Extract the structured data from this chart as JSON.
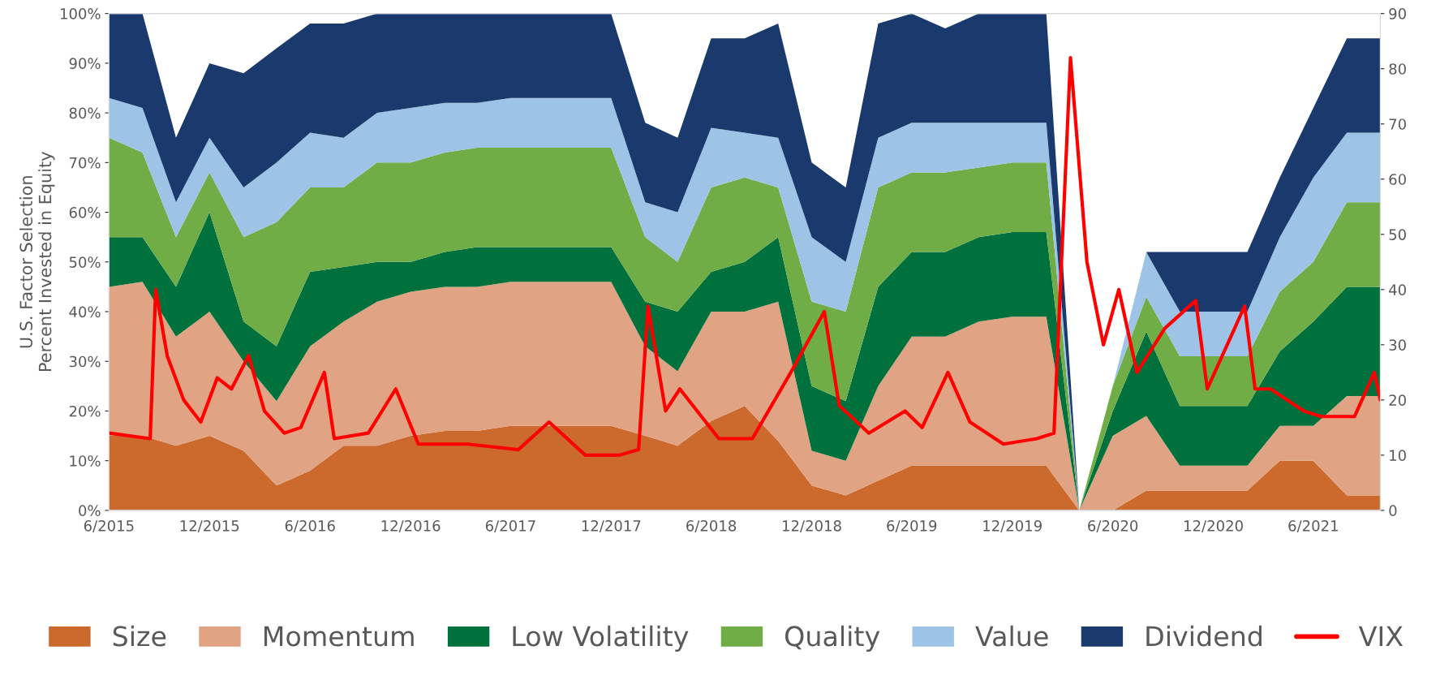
{
  "chart_data": {
    "type": "area",
    "stacked": true,
    "ylabel": "U.S. Factor Selection\nPercent Invested in Equity",
    "x": [
      "2015-06",
      "2015-08",
      "2015-10",
      "2015-12",
      "2016-02",
      "2016-04",
      "2016-06",
      "2016-08",
      "2016-10",
      "2016-12",
      "2017-02",
      "2017-04",
      "2017-06",
      "2017-08",
      "2017-10",
      "2017-12",
      "2018-02",
      "2018-04",
      "2018-06",
      "2018-08",
      "2018-10",
      "2018-12",
      "2019-02",
      "2019-04",
      "2019-06",
      "2019-08",
      "2019-10",
      "2019-12",
      "2020-02",
      "2020-04",
      "2020-06",
      "2020-08",
      "2020-10",
      "2020-12",
      "2021-02",
      "2021-04",
      "2021-06",
      "2021-08",
      "2021-10"
    ],
    "series": [
      {
        "name": "Size",
        "color": "#cc6a2d",
        "values": [
          15,
          15,
          13,
          15,
          12,
          5,
          8,
          13,
          13,
          15,
          16,
          16,
          17,
          17,
          17,
          17,
          15,
          13,
          18,
          21,
          14,
          5,
          3,
          6,
          9,
          9,
          9,
          9,
          9,
          0,
          0,
          4,
          4,
          4,
          4,
          10,
          10,
          3,
          3
        ]
      },
      {
        "name": "Momentum",
        "color": "#e0a484",
        "values": [
          30,
          31,
          22,
          25,
          18,
          17,
          25,
          25,
          29,
          29,
          29,
          29,
          29,
          29,
          29,
          29,
          18,
          15,
          22,
          19,
          28,
          7,
          7,
          19,
          26,
          26,
          29,
          30,
          30,
          0,
          15,
          15,
          5,
          5,
          5,
          7,
          7,
          20,
          20
        ]
      },
      {
        "name": "Low Volatility",
        "color": "#00703c",
        "values": [
          10,
          9,
          10,
          20,
          8,
          11,
          15,
          11,
          8,
          6,
          7,
          8,
          7,
          7,
          7,
          7,
          9,
          12,
          8,
          10,
          13,
          13,
          12,
          20,
          17,
          17,
          17,
          17,
          17,
          0,
          5,
          17,
          12,
          12,
          12,
          15,
          21,
          22,
          22
        ]
      },
      {
        "name": "Quality",
        "color": "#70ad47",
        "values": [
          20,
          17,
          10,
          8,
          17,
          25,
          17,
          16,
          20,
          20,
          20,
          20,
          20,
          20,
          20,
          20,
          13,
          10,
          17,
          17,
          10,
          17,
          18,
          20,
          16,
          16,
          14,
          14,
          14,
          0,
          5,
          7,
          10,
          10,
          10,
          12,
          12,
          17,
          17
        ]
      },
      {
        "name": "Value",
        "color": "#9dc3e6",
        "values": [
          8,
          9,
          7,
          7,
          10,
          12,
          11,
          10,
          10,
          11,
          10,
          9,
          10,
          10,
          10,
          10,
          7,
          10,
          12,
          9,
          10,
          13,
          10,
          10,
          10,
          10,
          9,
          8,
          8,
          0,
          0,
          9,
          9,
          9,
          9,
          11,
          17,
          14,
          14
        ]
      },
      {
        "name": "Dividend",
        "color": "#1a3a6e",
        "values": [
          17,
          19,
          13,
          15,
          23,
          23,
          22,
          23,
          20,
          19,
          18,
          18,
          17,
          17,
          17,
          17,
          16,
          15,
          18,
          19,
          23,
          15,
          15,
          23,
          22,
          19,
          22,
          22,
          22,
          0,
          0,
          0,
          12,
          12,
          12,
          12,
          14,
          19,
          19
        ]
      },
      {
        "name": "VIX",
        "type": "line",
        "axis": "y2",
        "color": "#ff0000",
        "x": [
          "2015-06-01",
          "2015-08-15",
          "2015-08-25",
          "2015-09-15",
          "2015-10-15",
          "2015-11-15",
          "2015-12-15",
          "2016-01-10",
          "2016-02-10",
          "2016-03-10",
          "2016-04-15",
          "2016-05-15",
          "2016-06-27",
          "2016-07-15",
          "2016-09-15",
          "2016-11-04",
          "2016-12-15",
          "2017-03-15",
          "2017-06-15",
          "2017-08-10",
          "2017-10-15",
          "2017-12-15",
          "2018-01-20",
          "2018-02-06",
          "2018-03-10",
          "2018-04-05",
          "2018-06-15",
          "2018-08-15",
          "2018-10-24",
          "2018-12-24",
          "2019-01-20",
          "2019-03-15",
          "2019-05-20",
          "2019-06-20",
          "2019-08-06",
          "2019-09-15",
          "2019-11-15",
          "2020-01-15",
          "2020-02-15",
          "2020-03-16",
          "2020-04-15",
          "2020-05-15",
          "2020-06-12",
          "2020-07-15",
          "2020-09-04",
          "2020-10-30",
          "2020-11-20",
          "2021-01-27",
          "2021-02-15",
          "2021-03-15",
          "2021-05-15",
          "2021-06-15",
          "2021-08-15",
          "2021-09-20",
          "2021-10-01"
        ],
        "values": [
          14,
          13,
          40,
          28,
          20,
          16,
          24,
          22,
          28,
          18,
          14,
          15,
          25,
          13,
          14,
          22,
          12,
          12,
          11,
          16,
          10,
          10,
          11,
          37,
          18,
          22,
          13,
          13,
          25,
          36,
          19,
          14,
          18,
          15,
          25,
          16,
          12,
          13,
          14,
          82,
          45,
          30,
          40,
          25,
          33,
          38,
          22,
          37,
          22,
          22,
          18,
          17,
          17,
          25,
          20
        ]
      }
    ],
    "xlim": [
      "2015-06",
      "2021-10"
    ],
    "xticks": [
      {
        "value": "2015-06",
        "label": "6/2015"
      },
      {
        "value": "2015-12",
        "label": "12/2015"
      },
      {
        "value": "2016-06",
        "label": "6/2016"
      },
      {
        "value": "2016-12",
        "label": "12/2016"
      },
      {
        "value": "2017-06",
        "label": "6/2017"
      },
      {
        "value": "2017-12",
        "label": "12/2017"
      },
      {
        "value": "2018-06",
        "label": "6/2018"
      },
      {
        "value": "2018-12",
        "label": "12/2018"
      },
      {
        "value": "2019-06",
        "label": "6/2019"
      },
      {
        "value": "2019-12",
        "label": "12/2019"
      },
      {
        "value": "2020-06",
        "label": "6/2020"
      },
      {
        "value": "2020-12",
        "label": "12/2020"
      },
      {
        "value": "2021-06",
        "label": "6/2021"
      }
    ],
    "ylim": [
      0,
      100
    ],
    "yticks": [
      {
        "value": 0,
        "label": "0%"
      },
      {
        "value": 10,
        "label": "10%"
      },
      {
        "value": 20,
        "label": "20%"
      },
      {
        "value": 30,
        "label": "30%"
      },
      {
        "value": 40,
        "label": "40%"
      },
      {
        "value": 50,
        "label": "50%"
      },
      {
        "value": 60,
        "label": "60%"
      },
      {
        "value": 70,
        "label": "70%"
      },
      {
        "value": 80,
        "label": "80%"
      },
      {
        "value": 90,
        "label": "90%"
      },
      {
        "value": 100,
        "label": "100%"
      }
    ],
    "y2lim": [
      0,
      90
    ],
    "y2ticks": [
      0,
      10,
      20,
      30,
      40,
      50,
      60,
      70,
      80,
      90
    ],
    "legend": "bottom",
    "grid": false
  }
}
